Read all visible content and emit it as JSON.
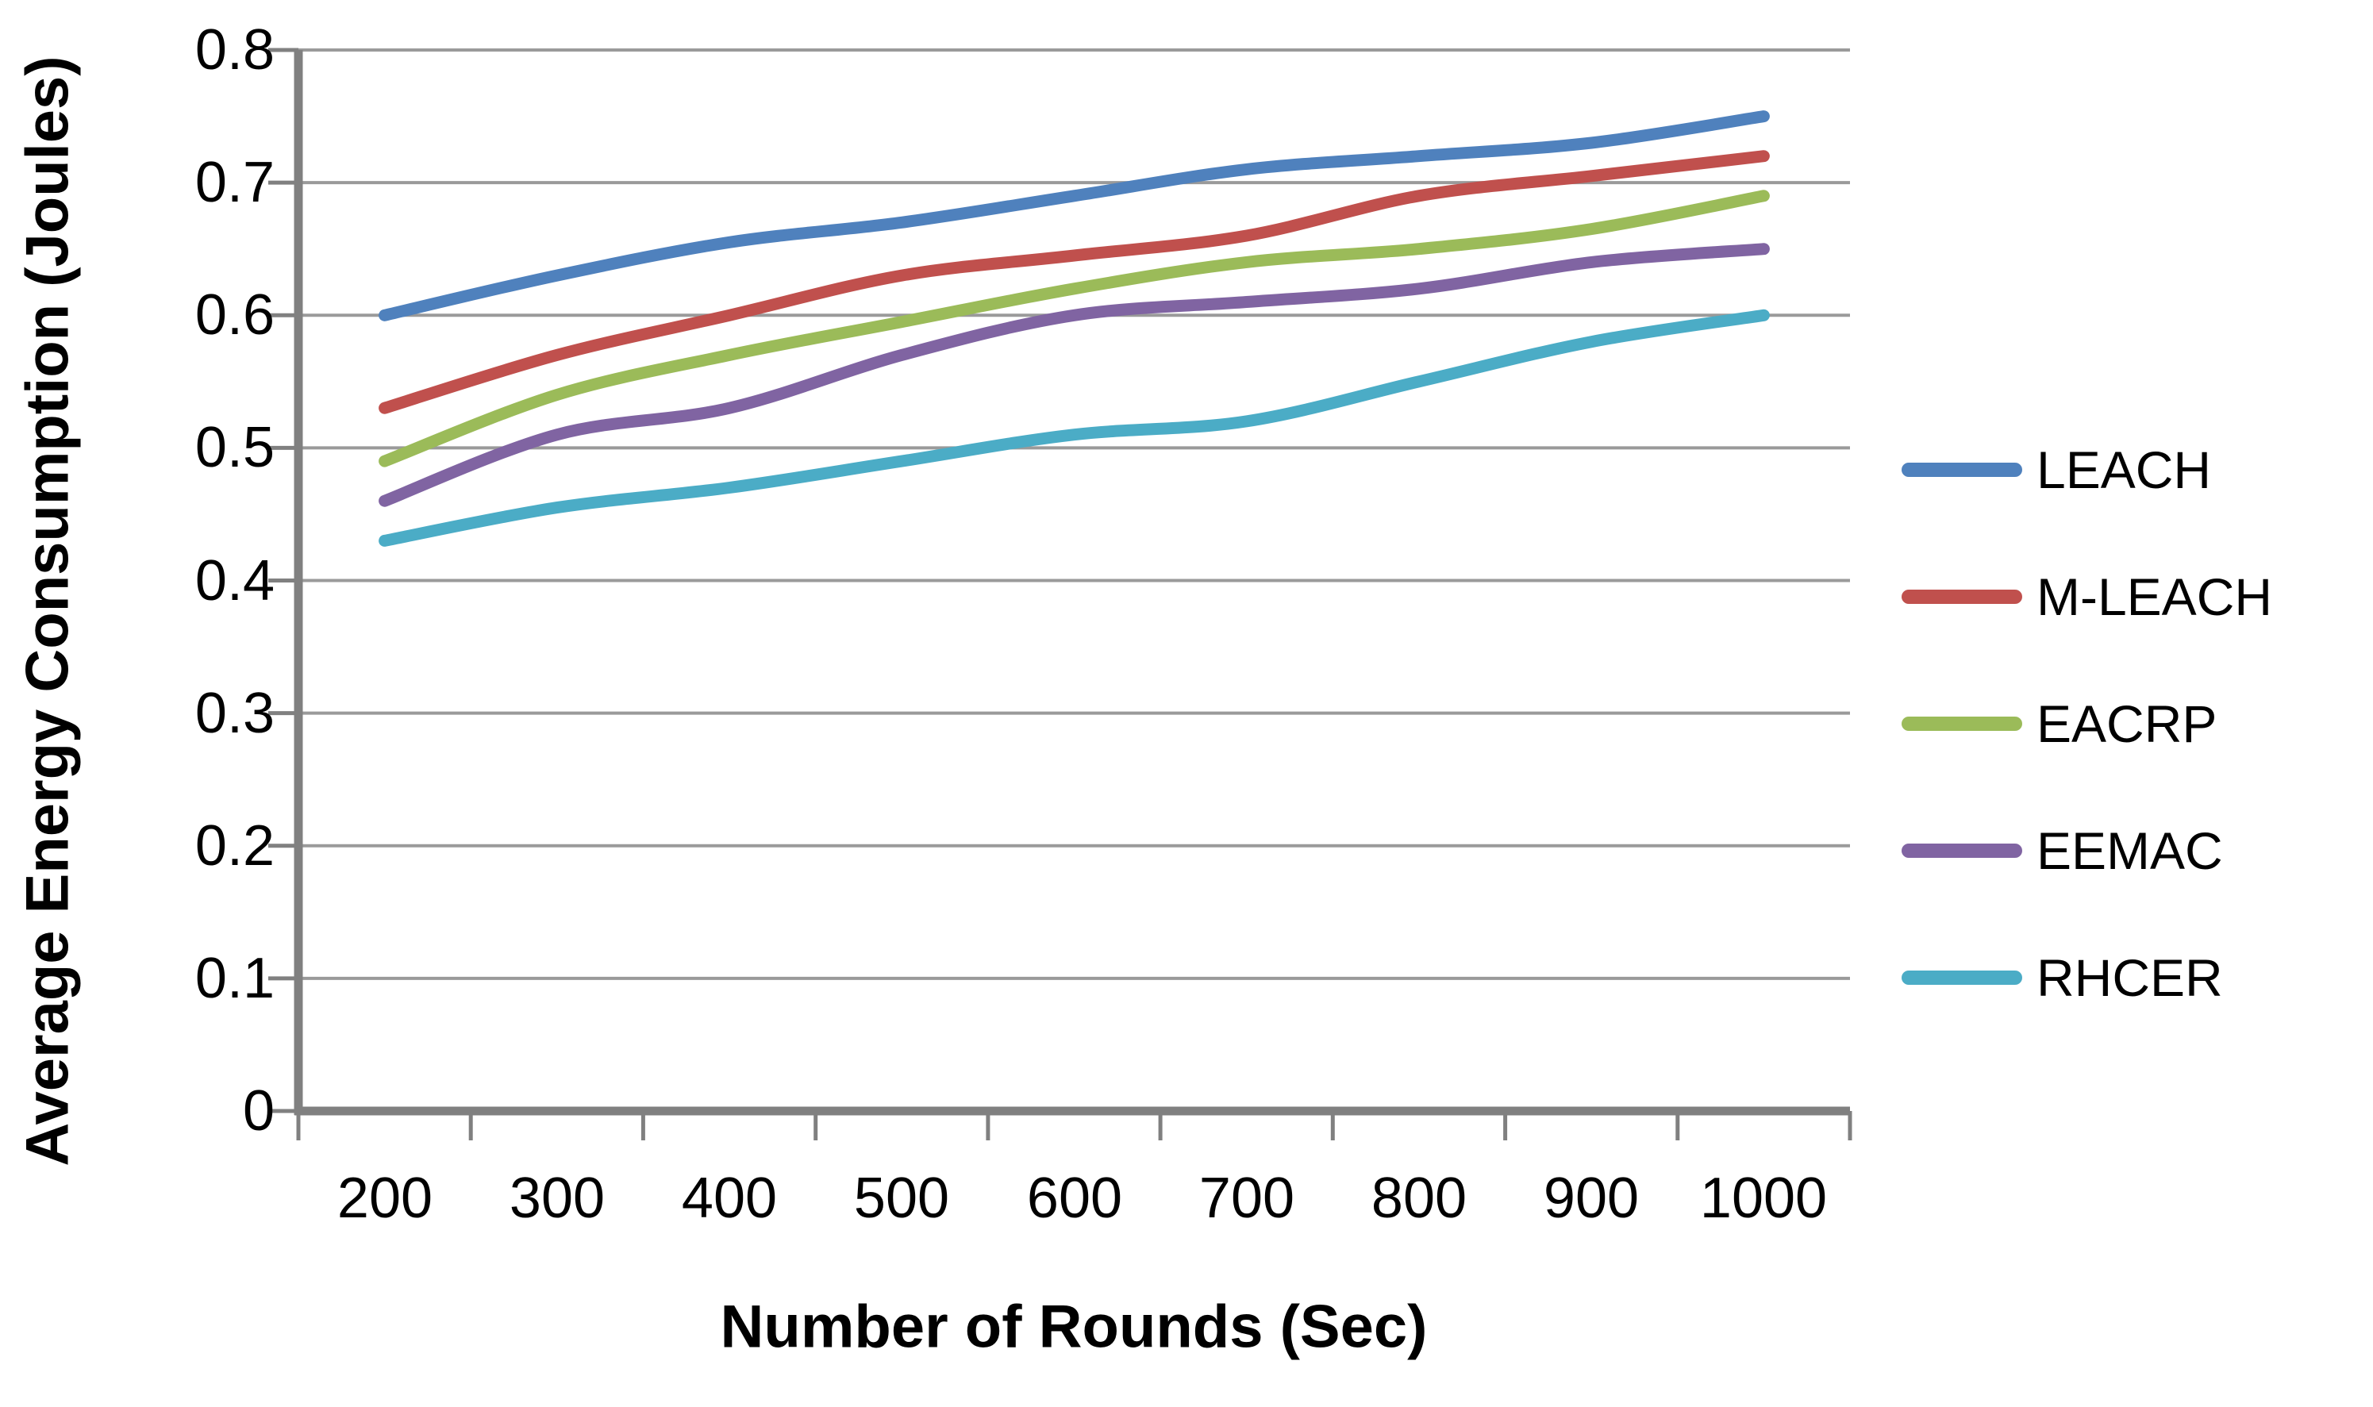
{
  "chart_data": {
    "type": "line",
    "title": "",
    "xlabel": "Number of Rounds (Sec)",
    "ylabel": "Average Energy Consumption (Joules)",
    "categories": [
      200,
      300,
      400,
      500,
      600,
      700,
      800,
      900,
      1000
    ],
    "x_tick_labels": [
      "200",
      "300",
      "400",
      "500",
      "600",
      "700",
      "800",
      "900",
      "1000"
    ],
    "y_ticks": [
      0,
      0.1,
      0.2,
      0.3,
      0.4,
      0.5,
      0.6,
      0.7,
      0.8
    ],
    "y_tick_labels": [
      "0",
      "0.1",
      "0.2",
      "0.3",
      "0.4",
      "0.5",
      "0.6",
      "0.7",
      "0.8"
    ],
    "ylim": [
      0,
      0.8
    ],
    "grid": true,
    "smoothed": true,
    "legend_position": "right",
    "series": [
      {
        "name": "LEACH",
        "color": "#4F81BD",
        "values": [
          0.6,
          0.63,
          0.655,
          0.67,
          0.69,
          0.71,
          0.72,
          0.73,
          0.75
        ]
      },
      {
        "name": "M-LEACH",
        "color": "#C0504D",
        "values": [
          0.53,
          0.57,
          0.6,
          0.63,
          0.645,
          0.66,
          0.69,
          0.705,
          0.72
        ]
      },
      {
        "name": "EACRP",
        "color": "#9BBB59",
        "values": [
          0.49,
          0.54,
          0.57,
          0.595,
          0.62,
          0.64,
          0.65,
          0.665,
          0.69
        ]
      },
      {
        "name": "EEMAC",
        "color": "#8064A2",
        "values": [
          0.46,
          0.51,
          0.53,
          0.57,
          0.6,
          0.61,
          0.62,
          0.64,
          0.65
        ]
      },
      {
        "name": "RHCER",
        "color": "#4BACC6",
        "values": [
          0.43,
          0.455,
          0.47,
          0.49,
          0.51,
          0.52,
          0.55,
          0.58,
          0.6
        ]
      }
    ],
    "colors": {
      "axis": "#808080",
      "gridline": "#9A9A9A",
      "text": "#000000",
      "background": "#FFFFFF"
    }
  }
}
